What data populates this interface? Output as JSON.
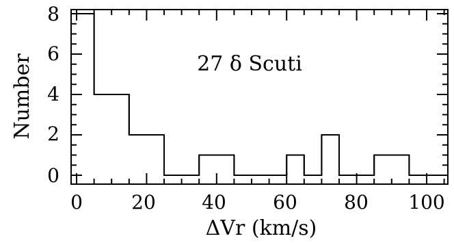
{
  "chart_data": {
    "type": "bar",
    "title": "",
    "annotation": "27 δ Scuti",
    "xlabel": "ΔVr (km/s)",
    "ylabel": "Number",
    "xlim": [
      0,
      105
    ],
    "ylim": [
      0,
      8.2
    ],
    "bins": [
      {
        "x0": 0,
        "x1": 5,
        "value": 8
      },
      {
        "x0": 5,
        "x1": 15,
        "value": 4
      },
      {
        "x0": 15,
        "x1": 25,
        "value": 2
      },
      {
        "x0": 25,
        "x1": 35,
        "value": 0
      },
      {
        "x0": 35,
        "x1": 45,
        "value": 1
      },
      {
        "x0": 45,
        "x1": 60,
        "value": 0
      },
      {
        "x0": 60,
        "x1": 65,
        "value": 1
      },
      {
        "x0": 65,
        "x1": 70,
        "value": 0
      },
      {
        "x0": 70,
        "x1": 75,
        "value": 2
      },
      {
        "x0": 75,
        "x1": 85,
        "value": 0
      },
      {
        "x0": 85,
        "x1": 95,
        "value": 1
      },
      {
        "x0": 95,
        "x1": 105,
        "value": 0
      }
    ],
    "x_ticks": [
      "0",
      "20",
      "40",
      "60",
      "80",
      "100"
    ],
    "y_ticks": [
      "0",
      "2",
      "4",
      "6",
      "8"
    ],
    "grid": false,
    "legend": "none"
  }
}
